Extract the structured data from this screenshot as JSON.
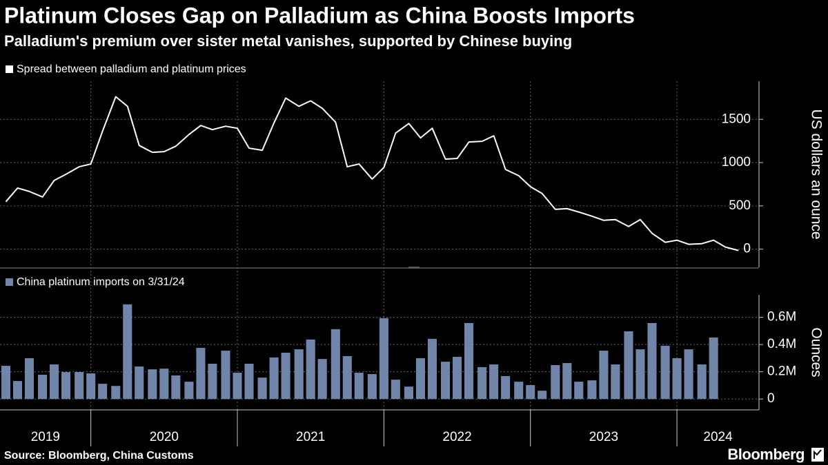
{
  "title": "Platinum Closes Gap on Palladium as China Boosts Imports",
  "subtitle": "Palladium's premium over sister metal vanishes, supported by Chinese buying",
  "source": "Source: Bloomberg, China Customs",
  "logo": "Bloomberg",
  "x_axis": {
    "xlim": [
      2019.38,
      2024.56
    ],
    "xticks": [
      2020,
      2021,
      2022,
      2023,
      2024
    ],
    "year_labels": [
      "2019",
      "2020",
      "2021",
      "2022",
      "2023",
      "2024"
    ]
  },
  "chart_data": [
    {
      "type": "line",
      "ylabel": "US dollars an ounce",
      "series": [
        {
          "name": "Spread between palladium and platinum prices",
          "color": "#ffffff",
          "x": [
            2019.42,
            2019.5,
            2019.58,
            2019.67,
            2019.75,
            2019.83,
            2019.92,
            2020.0,
            2020.08,
            2020.17,
            2020.25,
            2020.33,
            2020.42,
            2020.5,
            2020.58,
            2020.67,
            2020.75,
            2020.83,
            2020.92,
            2021.0,
            2021.08,
            2021.17,
            2021.25,
            2021.33,
            2021.42,
            2021.5,
            2021.58,
            2021.67,
            2021.75,
            2021.83,
            2021.92,
            2022.0,
            2022.08,
            2022.17,
            2022.25,
            2022.33,
            2022.42,
            2022.5,
            2022.58,
            2022.67,
            2022.75,
            2022.83,
            2022.92,
            2023.0,
            2023.08,
            2023.17,
            2023.25,
            2023.33,
            2023.42,
            2023.5,
            2023.58,
            2023.67,
            2023.75,
            2023.83,
            2023.92,
            2024.0,
            2024.08,
            2024.17,
            2024.25,
            2024.33,
            2024.42
          ],
          "values": [
            548,
            706,
            667,
            603,
            794,
            865,
            952,
            984,
            1365,
            1762,
            1651,
            1198,
            1119,
            1127,
            1190,
            1325,
            1429,
            1381,
            1421,
            1397,
            1167,
            1143,
            1460,
            1746,
            1651,
            1714,
            1627,
            1468,
            952,
            984,
            810,
            944,
            1341,
            1452,
            1286,
            1397,
            1040,
            1048,
            1238,
            1246,
            1310,
            921,
            849,
            722,
            643,
            460,
            468,
            429,
            381,
            333,
            341,
            262,
            341,
            183,
            79,
            103,
            56,
            63,
            103,
            24,
            -16
          ]
        }
      ],
      "ylim": [
        -210,
        1940
      ],
      "yticks": [
        0,
        500,
        1000,
        1500
      ],
      "grid": true
    },
    {
      "type": "bar",
      "ylabel": "Ounces",
      "series": [
        {
          "name": "China platinum imports on 3/31/24",
          "color": "#7185ab",
          "x": [
            2019.42,
            2019.5,
            2019.58,
            2019.67,
            2019.75,
            2019.83,
            2019.92,
            2020.0,
            2020.08,
            2020.17,
            2020.25,
            2020.33,
            2020.42,
            2020.5,
            2020.58,
            2020.67,
            2020.75,
            2020.83,
            2020.92,
            2021.0,
            2021.08,
            2021.17,
            2021.25,
            2021.33,
            2021.42,
            2021.5,
            2021.58,
            2021.67,
            2021.75,
            2021.83,
            2021.92,
            2022.0,
            2022.08,
            2022.17,
            2022.25,
            2022.33,
            2022.42,
            2022.5,
            2022.58,
            2022.67,
            2022.75,
            2022.83,
            2022.92,
            2023.0,
            2023.08,
            2023.17,
            2023.25,
            2023.33,
            2023.42,
            2023.5,
            2023.58,
            2023.67,
            2023.75,
            2023.83,
            2023.92,
            2024.0,
            2024.08,
            2024.17,
            2024.25
          ],
          "values": [
            244000,
            132000,
            300000,
            178000,
            254000,
            198000,
            198000,
            188000,
            112000,
            96000,
            695000,
            239000,
            218000,
            223000,
            173000,
            127000,
            376000,
            259000,
            355000,
            193000,
            259000,
            157000,
            305000,
            340000,
            365000,
            437000,
            294000,
            513000,
            315000,
            193000,
            183000,
            594000,
            142000,
            91000,
            300000,
            442000,
            274000,
            310000,
            558000,
            234000,
            254000,
            168000,
            127000,
            102000,
            61000,
            249000,
            264000,
            127000,
            137000,
            355000,
            254000,
            497000,
            365000,
            558000,
            391000,
            300000,
            365000,
            254000,
            452000
          ]
        }
      ],
      "ylim": [
        -80000,
        765000
      ],
      "yticks": [
        0,
        {
          "value": 200000,
          "label": "0.2M"
        },
        {
          "value": 400000,
          "label": "0.4M"
        },
        {
          "value": 600000,
          "label": "0.6M"
        }
      ],
      "grid": true
    }
  ]
}
